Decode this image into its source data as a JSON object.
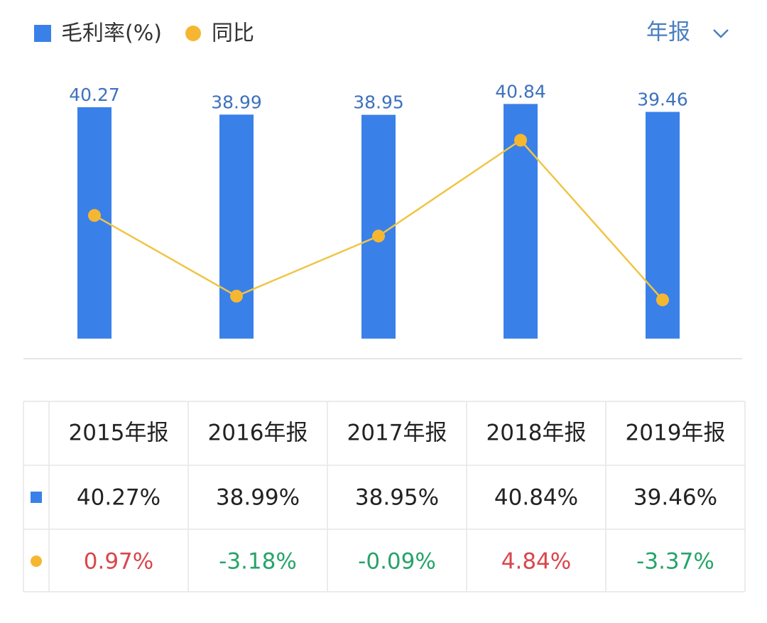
{
  "chart_data": {
    "type": "bar_line",
    "series": [
      {
        "name": "毛利率(%)",
        "color": "#3a80e9",
        "type": "bar",
        "values": [
          40.27,
          38.99,
          38.95,
          40.84,
          39.46
        ]
      },
      {
        "name": "同比",
        "color": "#f5b731",
        "type": "line",
        "axis": "y2",
        "values": [
          0.97,
          -3.18,
          -0.09,
          4.84,
          -3.37
        ]
      }
    ],
    "ylim": [
      -3.5,
      41.5
    ],
    "y2lim": [
      -6.4,
      6.9
    ],
    "value_label_color": "#3d72bd"
  },
  "period_selector": "年报",
  "table": {
    "header": [
      "2015年报",
      "2016年报",
      "2017年报",
      "2018年报",
      "2019年报"
    ],
    "rows": [
      [
        "40.27%",
        "38.99%",
        "38.95%",
        "40.84%",
        "39.46%"
      ],
      [
        "0.97%",
        "-3.18%",
        "-0.09%",
        "4.84%",
        "-3.37%"
      ]
    ],
    "up_color": "#d9464b",
    "down_color": "#27a36a"
  }
}
